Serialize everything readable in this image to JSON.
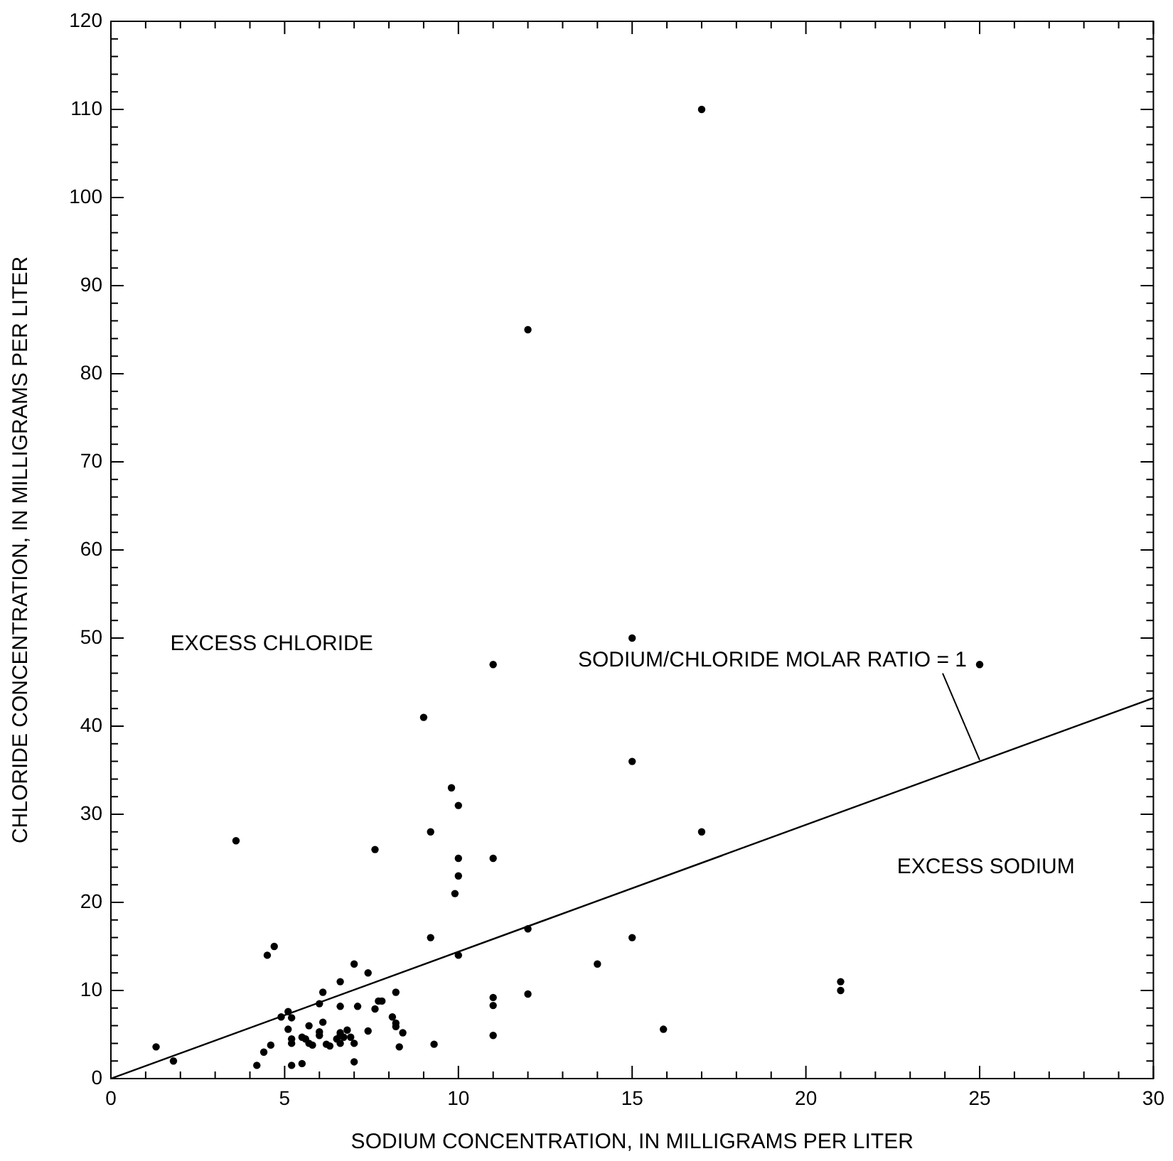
{
  "chart_data": {
    "type": "scatter",
    "xlabel": "SODIUM CONCENTRATION, IN MILLIGRAMS PER LITER",
    "ylabel": "CHLORIDE CONCENTRATION, IN MILLIGRAMS PER LITER",
    "xlim": [
      0,
      30
    ],
    "ylim": [
      0,
      120
    ],
    "xticks": [
      0,
      {
        "value": 1,
        "label": null
      },
      {
        "value": 2,
        "label": null
      },
      {
        "value": 3,
        "label": null
      },
      {
        "value": 4,
        "label": null
      },
      5,
      {
        "value": 6,
        "label": null
      },
      {
        "value": 7,
        "label": null
      },
      {
        "value": 8,
        "label": null
      },
      {
        "value": 9,
        "label": null
      },
      10,
      {
        "value": 11,
        "label": null
      },
      {
        "value": 12,
        "label": null
      },
      {
        "value": 13,
        "label": null
      },
      {
        "value": 14,
        "label": null
      },
      15,
      {
        "value": 16,
        "label": null
      },
      {
        "value": 17,
        "label": null
      },
      {
        "value": 18,
        "label": null
      },
      {
        "value": 19,
        "label": null
      },
      20,
      {
        "value": 21,
        "label": null
      },
      {
        "value": 22,
        "label": null
      },
      {
        "value": 23,
        "label": null
      },
      {
        "value": 24,
        "label": null
      },
      25,
      {
        "value": 26,
        "label": null
      },
      {
        "value": 27,
        "label": null
      },
      {
        "value": 28,
        "label": null
      },
      {
        "value": 29,
        "label": null
      },
      30
    ],
    "yticks": [
      0,
      {
        "value": 2,
        "label": null
      },
      {
        "value": 4,
        "label": null
      },
      {
        "value": 6,
        "label": null
      },
      {
        "value": 8,
        "label": null
      },
      10,
      {
        "value": 12,
        "label": null
      },
      {
        "value": 14,
        "label": null
      },
      {
        "value": 16,
        "label": null
      },
      {
        "value": 18,
        "label": null
      },
      20,
      {
        "value": 22,
        "label": null
      },
      {
        "value": 24,
        "label": null
      },
      {
        "value": 26,
        "label": null
      },
      {
        "value": 28,
        "label": null
      },
      30,
      {
        "value": 32,
        "label": null
      },
      {
        "value": 34,
        "label": null
      },
      {
        "value": 36,
        "label": null
      },
      {
        "value": 38,
        "label": null
      },
      40,
      {
        "value": 42,
        "label": null
      },
      {
        "value": 44,
        "label": null
      },
      {
        "value": 46,
        "label": null
      },
      {
        "value": 48,
        "label": null
      },
      50,
      {
        "value": 52,
        "label": null
      },
      {
        "value": 54,
        "label": null
      },
      {
        "value": 56,
        "label": null
      },
      {
        "value": 58,
        "label": null
      },
      60,
      {
        "value": 62,
        "label": null
      },
      {
        "value": 64,
        "label": null
      },
      {
        "value": 66,
        "label": null
      },
      {
        "value": 68,
        "label": null
      },
      70,
      {
        "value": 72,
        "label": null
      },
      {
        "value": 74,
        "label": null
      },
      {
        "value": 76,
        "label": null
      },
      {
        "value": 78,
        "label": null
      },
      80,
      {
        "value": 82,
        "label": null
      },
      {
        "value": 84,
        "label": null
      },
      {
        "value": 86,
        "label": null
      },
      {
        "value": 88,
        "label": null
      },
      90,
      {
        "value": 92,
        "label": null
      },
      {
        "value": 94,
        "label": null
      },
      {
        "value": 96,
        "label": null
      },
      {
        "value": 98,
        "label": null
      },
      100,
      {
        "value": 102,
        "label": null
      },
      {
        "value": 104,
        "label": null
      },
      {
        "value": 106,
        "label": null
      },
      {
        "value": 108,
        "label": null
      },
      110,
      {
        "value": 112,
        "label": null
      },
      {
        "value": 114,
        "label": null
      },
      {
        "value": 116,
        "label": null
      },
      {
        "value": 118,
        "label": null
      },
      120
    ],
    "marker": "circle",
    "series": [
      {
        "type": "scatter",
        "color": "#000000",
        "x": [
          1.3,
          1.8,
          4.5,
          4.7,
          4.2,
          4.4,
          4.6,
          4.9,
          5.1,
          5.2,
          5.1,
          5.2,
          5.2,
          5.2,
          5.5,
          5.5,
          5.7,
          5.6,
          5.7,
          5.8,
          6.0,
          6.1,
          6.0,
          6.0,
          6.1,
          6.2,
          6.3,
          6.5,
          6.6,
          6.6,
          6.6,
          6.6,
          6.6,
          6.7,
          6.8,
          6.9,
          7.0,
          7.0,
          7.0,
          7.1,
          7.4,
          7.4,
          7.6,
          7.7,
          7.8,
          8.1,
          8.2,
          8.2,
          8.2,
          8.4,
          8.3,
          9.2,
          9.3,
          10.0,
          11.0,
          11.0,
          11.0,
          12.0,
          12.0,
          14.0,
          15.0,
          15.9,
          3.6,
          7.6,
          9.8,
          10.0,
          9.2,
          10.0,
          11.0,
          10.0,
          9.9,
          11.0,
          9.0,
          15.0,
          15.0,
          17.0,
          12.0,
          25.0,
          17.0,
          21.0,
          21.0
        ],
        "values": [
          3.6,
          2.0,
          14,
          15,
          1.5,
          3.0,
          3.8,
          7.0,
          7.6,
          6.9,
          5.6,
          4.5,
          4.0,
          1.5,
          1.7,
          4.7,
          6.0,
          4.5,
          4.0,
          3.8,
          8.5,
          9.8,
          5.3,
          4.9,
          6.4,
          3.9,
          3.7,
          4.5,
          11,
          8.2,
          5.2,
          4.9,
          4.0,
          4.7,
          5.5,
          4.7,
          4.0,
          1.9,
          13,
          8.2,
          12,
          5.4,
          7.9,
          8.8,
          8.8,
          7.0,
          9.8,
          6.3,
          5.9,
          5.2,
          3.6,
          16,
          3.9,
          14,
          9.2,
          8.3,
          4.9,
          17,
          9.6,
          13,
          16,
          5.6,
          27,
          26,
          33,
          31,
          28,
          25,
          25,
          23,
          21,
          47,
          41,
          50,
          36,
          110,
          85,
          47,
          28,
          11,
          10
        ]
      },
      {
        "type": "line",
        "color": "#000000",
        "x": [
          0,
          30
        ],
        "values": [
          0,
          43.2
        ],
        "marker": "none"
      }
    ],
    "annotations": [
      "EXCESS CHLORIDE",
      "EXCESS SODIUM",
      {
        "text": "SODIUM/CHLORIDE MOLAR RATIO = 1",
        "x": 25,
        "y": 36
      }
    ]
  }
}
